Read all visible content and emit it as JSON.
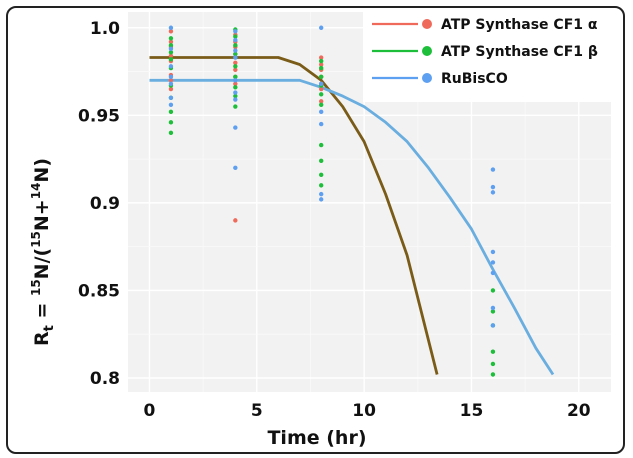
{
  "chart_data": {
    "type": "scatter",
    "xlabel": "Time (hr)",
    "ylabel": "R_t = 15N/(15N+14N)",
    "xlim": [
      -1,
      21.5
    ],
    "ylim": [
      0.792,
      1.009
    ],
    "xticks": [
      0,
      5,
      10,
      15,
      20
    ],
    "yticks": [
      0.8,
      0.85,
      0.9,
      0.95,
      1.0
    ],
    "ytick_labels": [
      "0.8",
      "0.85",
      "0.9",
      "0.95",
      "1.0"
    ],
    "grid": true,
    "legend_position": "top-right",
    "series": [
      {
        "name": "ATP Synthase CF1 α",
        "color": "#ef6a5a",
        "points": [
          [
            1,
            0.998
          ],
          [
            1,
            0.992
          ],
          [
            1,
            0.989
          ],
          [
            1,
            0.984
          ],
          [
            1,
            0.981
          ],
          [
            1,
            0.973
          ],
          [
            1,
            0.97
          ],
          [
            1,
            0.965
          ],
          [
            4,
            0.996
          ],
          [
            4,
            0.992
          ],
          [
            4,
            0.989
          ],
          [
            4,
            0.985
          ],
          [
            4,
            0.98
          ],
          [
            4,
            0.976
          ],
          [
            4,
            0.972
          ],
          [
            4,
            0.968
          ],
          [
            4,
            0.89
          ],
          [
            8,
            0.983
          ],
          [
            8,
            0.979
          ],
          [
            8,
            0.976
          ],
          [
            8,
            0.972
          ],
          [
            8,
            0.968
          ],
          [
            8,
            0.965
          ],
          [
            8,
            0.958
          ]
        ],
        "fit": [
          [
            0,
            0.983
          ],
          [
            6,
            0.983
          ],
          [
            7,
            0.979
          ],
          [
            8,
            0.97
          ],
          [
            9,
            0.955
          ],
          [
            10,
            0.935
          ],
          [
            11,
            0.905
          ],
          [
            12,
            0.87
          ],
          [
            13.4,
            0.802
          ]
        ]
      },
      {
        "name": "ATP Synthase CF1 β",
        "color": "#1dbf3a",
        "points": [
          [
            1,
            0.994
          ],
          [
            1,
            0.99
          ],
          [
            1,
            0.986
          ],
          [
            1,
            0.982
          ],
          [
            1,
            0.977
          ],
          [
            1,
            0.967
          ],
          [
            1,
            0.96
          ],
          [
            1,
            0.952
          ],
          [
            1,
            0.946
          ],
          [
            1,
            0.94
          ],
          [
            4,
            0.999
          ],
          [
            4,
            0.995
          ],
          [
            4,
            0.99
          ],
          [
            4,
            0.985
          ],
          [
            4,
            0.978
          ],
          [
            4,
            0.972
          ],
          [
            4,
            0.966
          ],
          [
            4,
            0.961
          ],
          [
            4,
            0.955
          ],
          [
            8,
            0.981
          ],
          [
            8,
            0.977
          ],
          [
            8,
            0.972
          ],
          [
            8,
            0.967
          ],
          [
            8,
            0.962
          ],
          [
            8,
            0.956
          ],
          [
            8,
            0.933
          ],
          [
            8,
            0.924
          ],
          [
            8,
            0.916
          ],
          [
            8,
            0.91
          ],
          [
            16,
            0.85
          ],
          [
            16,
            0.838
          ],
          [
            16,
            0.83
          ],
          [
            16,
            0.815
          ],
          [
            16,
            0.808
          ],
          [
            16,
            0.802
          ]
        ]
      },
      {
        "name": "RuBisCO",
        "color": "#5d9ff0",
        "points": [
          [
            1,
            1.0
          ],
          [
            1,
            0.988
          ],
          [
            1,
            0.978
          ],
          [
            1,
            0.972
          ],
          [
            1,
            0.968
          ],
          [
            1,
            0.96
          ],
          [
            1,
            0.956
          ],
          [
            4,
            0.998
          ],
          [
            4,
            0.993
          ],
          [
            4,
            0.987
          ],
          [
            4,
            0.983
          ],
          [
            4,
            0.97
          ],
          [
            4,
            0.963
          ],
          [
            4,
            0.959
          ],
          [
            4,
            0.943
          ],
          [
            4,
            0.92
          ],
          [
            8,
            1.0
          ],
          [
            8,
            0.968
          ],
          [
            8,
            0.952
          ],
          [
            8,
            0.945
          ],
          [
            8,
            0.905
          ],
          [
            8,
            0.902
          ],
          [
            16,
            0.919
          ],
          [
            16,
            0.909
          ],
          [
            16,
            0.906
          ],
          [
            16,
            0.872
          ],
          [
            16,
            0.866
          ],
          [
            16,
            0.86
          ],
          [
            16,
            0.84
          ],
          [
            16,
            0.83
          ]
        ],
        "fit": [
          [
            0,
            0.97
          ],
          [
            7,
            0.97
          ],
          [
            8,
            0.966
          ],
          [
            9,
            0.961
          ],
          [
            10,
            0.955
          ],
          [
            11,
            0.946
          ],
          [
            12,
            0.935
          ],
          [
            13,
            0.92
          ],
          [
            14,
            0.903
          ],
          [
            15,
            0.885
          ],
          [
            16,
            0.862
          ],
          [
            17,
            0.84
          ],
          [
            18,
            0.817
          ],
          [
            18.8,
            0.802
          ]
        ]
      }
    ],
    "fit_colors": {
      "ATP Synthase CF1 α": "#7a5c18",
      "RuBisCO": "#6aaee0"
    }
  },
  "legend": {
    "items": [
      {
        "label": "ATP Synthase CF1 α",
        "line_color": "#ef6a5a",
        "dot_color": "#ef6a5a"
      },
      {
        "label": "ATP Synthase CF1 β",
        "line_color": "#1dbf3a",
        "dot_color": "#1dbf3a"
      },
      {
        "label": "RuBisCO",
        "line_color": "#5d9ff0",
        "dot_color": "#5d9ff0"
      }
    ]
  }
}
